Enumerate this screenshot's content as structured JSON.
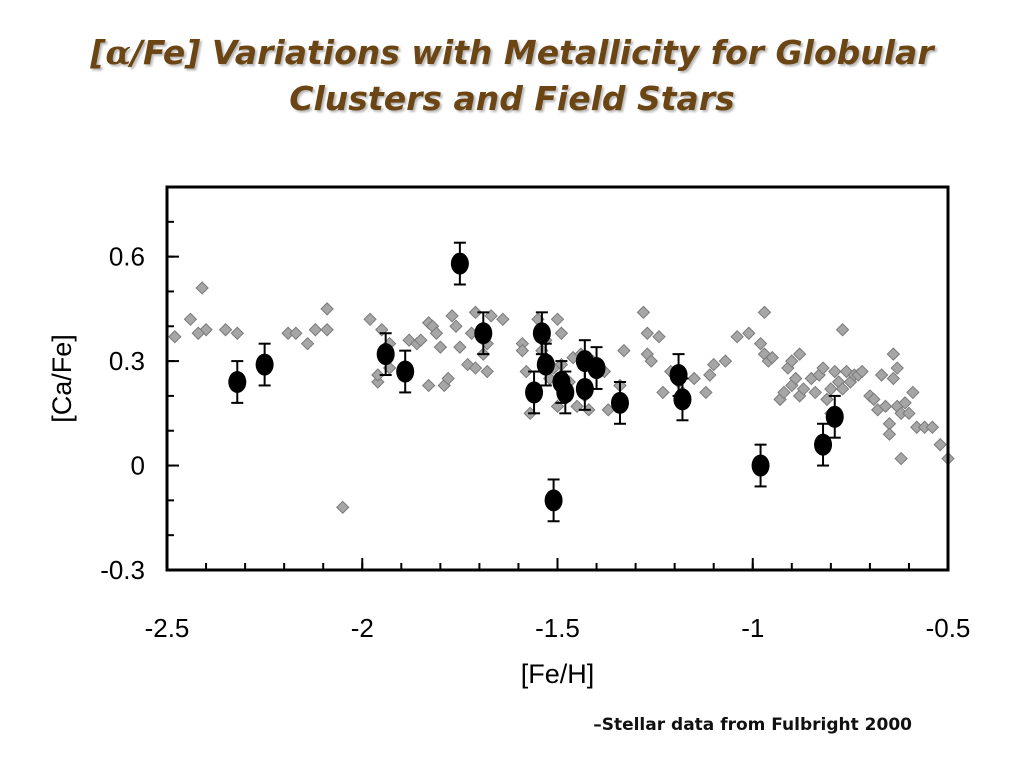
{
  "title": {
    "line1_prefix": "[",
    "line1_alpha": "α",
    "line1_suffix": "/Fe] Variations with Metallicity for Globular",
    "line2": "Clusters and  Field Stars"
  },
  "caption": "–Stellar data from Fulbright 2000",
  "chart_data": {
    "type": "scatter",
    "xlabel": "[Fe/H]",
    "ylabel": "[Ca/Fe]",
    "xlim": [
      -2.5,
      -0.5
    ],
    "ylim": [
      -0.3,
      0.8
    ],
    "xticks": [
      -2.5,
      -2,
      -1.5,
      -1,
      -0.5
    ],
    "xtick_labels": [
      "-2.5",
      "-2",
      "-1.5",
      "-1",
      "-0.5"
    ],
    "yticks": [
      -0.3,
      0,
      0.3,
      0.6
    ],
    "ytick_labels": [
      "-0.3",
      "0",
      "0.3",
      "0.6"
    ],
    "grid": false,
    "series": [
      {
        "marker": "diamond",
        "color": "#a6a6a6",
        "points": [
          [
            -2.48,
            0.37
          ],
          [
            -2.44,
            0.42
          ],
          [
            -2.41,
            0.51
          ],
          [
            -2.4,
            0.39
          ],
          [
            -2.35,
            0.39
          ],
          [
            -2.32,
            0.38
          ],
          [
            -2.19,
            0.38
          ],
          [
            -2.17,
            0.38
          ],
          [
            -2.14,
            0.35
          ],
          [
            -2.12,
            0.39
          ],
          [
            -2.09,
            0.45
          ],
          [
            -2.09,
            0.39
          ],
          [
            -2.05,
            -0.12
          ],
          [
            -1.98,
            0.42
          ],
          [
            -1.96,
            0.24
          ],
          [
            -1.96,
            0.26
          ],
          [
            -1.95,
            0.39
          ],
          [
            -1.93,
            0.35
          ],
          [
            -1.93,
            0.28
          ],
          [
            -1.88,
            0.36
          ],
          [
            -1.86,
            0.35
          ],
          [
            -1.85,
            0.36
          ],
          [
            -1.83,
            0.41
          ],
          [
            -1.83,
            0.23
          ],
          [
            -1.82,
            0.4
          ],
          [
            -1.81,
            0.38
          ],
          [
            -1.8,
            0.34
          ],
          [
            -1.79,
            0.23
          ],
          [
            -1.78,
            0.25
          ],
          [
            -1.77,
            0.43
          ],
          [
            -1.76,
            0.4
          ],
          [
            -1.75,
            0.34
          ],
          [
            -1.73,
            0.29
          ],
          [
            -1.72,
            0.38
          ],
          [
            -1.71,
            0.44
          ],
          [
            -1.71,
            0.28
          ],
          [
            -1.69,
            0.32
          ],
          [
            -1.68,
            0.35
          ],
          [
            -1.68,
            0.27
          ],
          [
            -1.67,
            0.43
          ],
          [
            -1.64,
            0.42
          ],
          [
            -1.59,
            0.35
          ],
          [
            -1.59,
            0.33
          ],
          [
            -1.58,
            0.27
          ],
          [
            -1.57,
            0.15
          ],
          [
            -1.55,
            0.42
          ],
          [
            -1.54,
            0.33
          ],
          [
            -1.53,
            0.36
          ],
          [
            -1.52,
            0.25
          ],
          [
            -1.51,
            0.28
          ],
          [
            -1.5,
            0.42
          ],
          [
            -1.5,
            0.17
          ],
          [
            -1.49,
            0.38
          ],
          [
            -1.49,
            0.29
          ],
          [
            -1.48,
            0.22
          ],
          [
            -1.47,
            0.24
          ],
          [
            -1.46,
            0.31
          ],
          [
            -1.45,
            0.17
          ],
          [
            -1.44,
            0.32
          ],
          [
            -1.43,
            0.2
          ],
          [
            -1.42,
            0.16
          ],
          [
            -1.41,
            0.3
          ],
          [
            -1.4,
            0.29
          ],
          [
            -1.38,
            0.27
          ],
          [
            -1.37,
            0.16
          ],
          [
            -1.34,
            0.23
          ],
          [
            -1.33,
            0.33
          ],
          [
            -1.28,
            0.44
          ],
          [
            -1.27,
            0.38
          ],
          [
            -1.27,
            0.32
          ],
          [
            -1.26,
            0.3
          ],
          [
            -1.24,
            0.37
          ],
          [
            -1.23,
            0.21
          ],
          [
            -1.21,
            0.27
          ],
          [
            -1.19,
            0.24
          ],
          [
            -1.18,
            0.21
          ],
          [
            -1.15,
            0.25
          ],
          [
            -1.12,
            0.21
          ],
          [
            -1.11,
            0.26
          ],
          [
            -1.1,
            0.29
          ],
          [
            -1.07,
            0.3
          ],
          [
            -1.04,
            0.37
          ],
          [
            -1.01,
            0.38
          ],
          [
            -0.98,
            0.35
          ],
          [
            -0.97,
            0.44
          ],
          [
            -0.97,
            0.32
          ],
          [
            -0.96,
            0.3
          ],
          [
            -0.95,
            0.31
          ],
          [
            -0.93,
            0.19
          ],
          [
            -0.92,
            0.21
          ],
          [
            -0.91,
            0.28
          ],
          [
            -0.9,
            0.3
          ],
          [
            -0.9,
            0.23
          ],
          [
            -0.89,
            0.25
          ],
          [
            -0.88,
            0.32
          ],
          [
            -0.88,
            0.2
          ],
          [
            -0.87,
            0.22
          ],
          [
            -0.85,
            0.25
          ],
          [
            -0.84,
            0.21
          ],
          [
            -0.83,
            0.26
          ],
          [
            -0.82,
            0.28
          ],
          [
            -0.81,
            0.19
          ],
          [
            -0.8,
            0.22
          ],
          [
            -0.8,
            0.15
          ],
          [
            -0.79,
            0.27
          ],
          [
            -0.78,
            0.24
          ],
          [
            -0.77,
            0.39
          ],
          [
            -0.77,
            0.22
          ],
          [
            -0.76,
            0.27
          ],
          [
            -0.75,
            0.24
          ],
          [
            -0.74,
            0.26
          ],
          [
            -0.73,
            0.26
          ],
          [
            -0.72,
            0.27
          ],
          [
            -0.7,
            0.2
          ],
          [
            -0.69,
            0.19
          ],
          [
            -0.68,
            0.16
          ],
          [
            -0.67,
            0.26
          ],
          [
            -0.66,
            0.17
          ],
          [
            -0.65,
            0.12
          ],
          [
            -0.65,
            0.09
          ],
          [
            -0.64,
            0.32
          ],
          [
            -0.64,
            0.25
          ],
          [
            -0.63,
            0.28
          ],
          [
            -0.63,
            0.17
          ],
          [
            -0.62,
            0.15
          ],
          [
            -0.62,
            0.02
          ],
          [
            -0.61,
            0.18
          ],
          [
            -0.6,
            0.15
          ],
          [
            -0.59,
            0.21
          ],
          [
            -0.58,
            0.11
          ],
          [
            -0.56,
            0.11
          ],
          [
            -0.54,
            0.11
          ],
          [
            -0.52,
            0.06
          ],
          [
            -0.5,
            0.02
          ],
          [
            -2.42,
            0.38
          ]
        ]
      },
      {
        "marker": "circle",
        "color": "#000000",
        "error_bars": true,
        "points": [
          {
            "x": -2.32,
            "y": 0.24,
            "err": 0.06
          },
          {
            "x": -2.25,
            "y": 0.29,
            "err": 0.06
          },
          {
            "x": -1.94,
            "y": 0.32,
            "err": 0.06
          },
          {
            "x": -1.89,
            "y": 0.27,
            "err": 0.06
          },
          {
            "x": -1.75,
            "y": 0.58,
            "err": 0.06
          },
          {
            "x": -1.69,
            "y": 0.38,
            "err": 0.06
          },
          {
            "x": -1.56,
            "y": 0.21,
            "err": 0.06
          },
          {
            "x": -1.54,
            "y": 0.38,
            "err": 0.06
          },
          {
            "x": -1.53,
            "y": 0.29,
            "err": 0.06
          },
          {
            "x": -1.51,
            "y": -0.1,
            "err": 0.06
          },
          {
            "x": -1.49,
            "y": 0.24,
            "err": 0.06
          },
          {
            "x": -1.48,
            "y": 0.21,
            "err": 0.06
          },
          {
            "x": -1.43,
            "y": 0.3,
            "err": 0.06
          },
          {
            "x": -1.43,
            "y": 0.22,
            "err": 0.06
          },
          {
            "x": -1.4,
            "y": 0.28,
            "err": 0.06
          },
          {
            "x": -1.34,
            "y": 0.18,
            "err": 0.06
          },
          {
            "x": -1.19,
            "y": 0.26,
            "err": 0.06
          },
          {
            "x": -1.18,
            "y": 0.19,
            "err": 0.06
          },
          {
            "x": -0.98,
            "y": 0.0,
            "err": 0.06
          },
          {
            "x": -0.82,
            "y": 0.06,
            "err": 0.06
          },
          {
            "x": -0.79,
            "y": 0.14,
            "err": 0.06
          }
        ]
      }
    ]
  }
}
